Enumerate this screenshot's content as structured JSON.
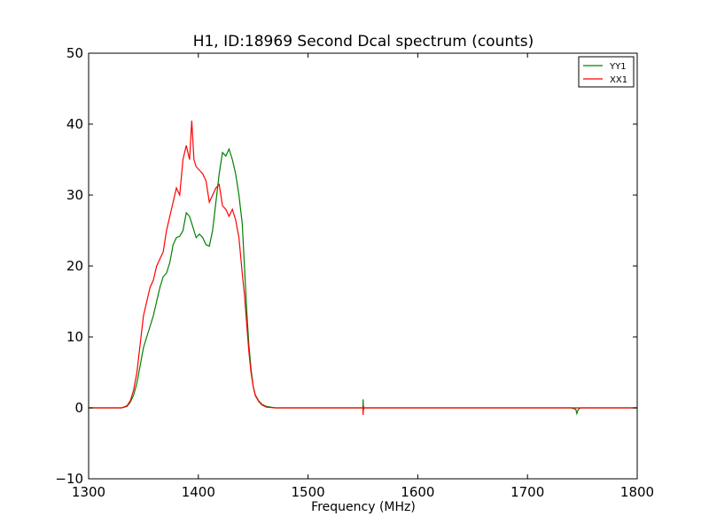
{
  "chart_data": {
    "type": "line",
    "title": "H1, ID:18969 Second Dcal spectrum (counts)",
    "xlabel": "Frequency (MHz)",
    "ylabel": "",
    "xlim": [
      1300,
      1800
    ],
    "ylim": [
      -10,
      50
    ],
    "x_ticks": [
      1300,
      1400,
      1500,
      1600,
      1700,
      1800
    ],
    "x_tick_labels": [
      "1300",
      "1400",
      "1500",
      "1600",
      "1700",
      "1800"
    ],
    "y_ticks": [
      -10,
      0,
      10,
      20,
      30,
      40,
      50
    ],
    "y_tick_labels": [
      "−10",
      "0",
      "10",
      "20",
      "30",
      "40",
      "50"
    ],
    "grid": false,
    "legend_position": "top-right",
    "series": [
      {
        "name": "YY1",
        "color": "#008000",
        "points": [
          [
            1300,
            0
          ],
          [
            1310,
            0
          ],
          [
            1320,
            0
          ],
          [
            1330,
            0
          ],
          [
            1335,
            0.2
          ],
          [
            1338,
            0.8
          ],
          [
            1341,
            1.8
          ],
          [
            1344,
            3.5
          ],
          [
            1347,
            6
          ],
          [
            1350,
            8.5
          ],
          [
            1353,
            10
          ],
          [
            1356,
            11.5
          ],
          [
            1359,
            13
          ],
          [
            1362,
            15
          ],
          [
            1365,
            17
          ],
          [
            1368,
            18.5
          ],
          [
            1371,
            19
          ],
          [
            1374,
            20.5
          ],
          [
            1377,
            23
          ],
          [
            1380,
            24
          ],
          [
            1383,
            24.2
          ],
          [
            1386,
            25
          ],
          [
            1389,
            27.5
          ],
          [
            1392,
            27
          ],
          [
            1395,
            25.5
          ],
          [
            1398,
            24
          ],
          [
            1401,
            24.5
          ],
          [
            1404,
            24
          ],
          [
            1407,
            23
          ],
          [
            1410,
            22.8
          ],
          [
            1413,
            25
          ],
          [
            1416,
            29
          ],
          [
            1419,
            33
          ],
          [
            1422,
            36
          ],
          [
            1425,
            35.5
          ],
          [
            1428,
            36.5
          ],
          [
            1431,
            35
          ],
          [
            1434,
            33
          ],
          [
            1437,
            30
          ],
          [
            1440,
            26
          ],
          [
            1442,
            20
          ],
          [
            1444,
            14
          ],
          [
            1446,
            9
          ],
          [
            1448,
            5.5
          ],
          [
            1450,
            3
          ],
          [
            1452,
            1.8
          ],
          [
            1455,
            1
          ],
          [
            1458,
            0.5
          ],
          [
            1462,
            0.2
          ],
          [
            1470,
            0
          ],
          [
            1500,
            0
          ],
          [
            1549,
            0
          ],
          [
            1550,
            0
          ],
          [
            1550.2,
            1.2
          ],
          [
            1550.4,
            -0.3
          ],
          [
            1551,
            0
          ],
          [
            1600,
            0
          ],
          [
            1700,
            0
          ],
          [
            1740,
            0
          ],
          [
            1744,
            -0.2
          ],
          [
            1745,
            -0.8
          ],
          [
            1746,
            -0.3
          ],
          [
            1748,
            0
          ],
          [
            1800,
            0
          ]
        ]
      },
      {
        "name": "XX1",
        "color": "#ff0000",
        "points": [
          [
            1300,
            0
          ],
          [
            1310,
            0
          ],
          [
            1320,
            0
          ],
          [
            1330,
            0
          ],
          [
            1335,
            0.3
          ],
          [
            1338,
            1
          ],
          [
            1341,
            2.5
          ],
          [
            1344,
            5
          ],
          [
            1347,
            9
          ],
          [
            1350,
            13
          ],
          [
            1353,
            15
          ],
          [
            1356,
            17
          ],
          [
            1359,
            18
          ],
          [
            1362,
            20
          ],
          [
            1365,
            21
          ],
          [
            1368,
            22
          ],
          [
            1371,
            25
          ],
          [
            1374,
            27
          ],
          [
            1377,
            29
          ],
          [
            1380,
            31
          ],
          [
            1383,
            30
          ],
          [
            1386,
            35
          ],
          [
            1389,
            37
          ],
          [
            1392,
            35
          ],
          [
            1394,
            40.5
          ],
          [
            1396,
            35
          ],
          [
            1398,
            34
          ],
          [
            1401,
            33.5
          ],
          [
            1404,
            33
          ],
          [
            1407,
            32
          ],
          [
            1410,
            29
          ],
          [
            1413,
            30
          ],
          [
            1416,
            31
          ],
          [
            1419,
            31.5
          ],
          [
            1422,
            28.5
          ],
          [
            1425,
            28
          ],
          [
            1428,
            27
          ],
          [
            1431,
            28
          ],
          [
            1434,
            26.5
          ],
          [
            1437,
            24
          ],
          [
            1440,
            19
          ],
          [
            1442,
            16
          ],
          [
            1444,
            12
          ],
          [
            1446,
            8
          ],
          [
            1448,
            5
          ],
          [
            1450,
            3
          ],
          [
            1452,
            1.7
          ],
          [
            1455,
            0.9
          ],
          [
            1458,
            0.4
          ],
          [
            1462,
            0.1
          ],
          [
            1470,
            0
          ],
          [
            1500,
            0
          ],
          [
            1549,
            0
          ],
          [
            1550,
            0
          ],
          [
            1550.2,
            -1
          ],
          [
            1550.4,
            0.3
          ],
          [
            1551,
            0
          ],
          [
            1600,
            0
          ],
          [
            1700,
            0
          ],
          [
            1800,
            0
          ]
        ]
      }
    ]
  }
}
